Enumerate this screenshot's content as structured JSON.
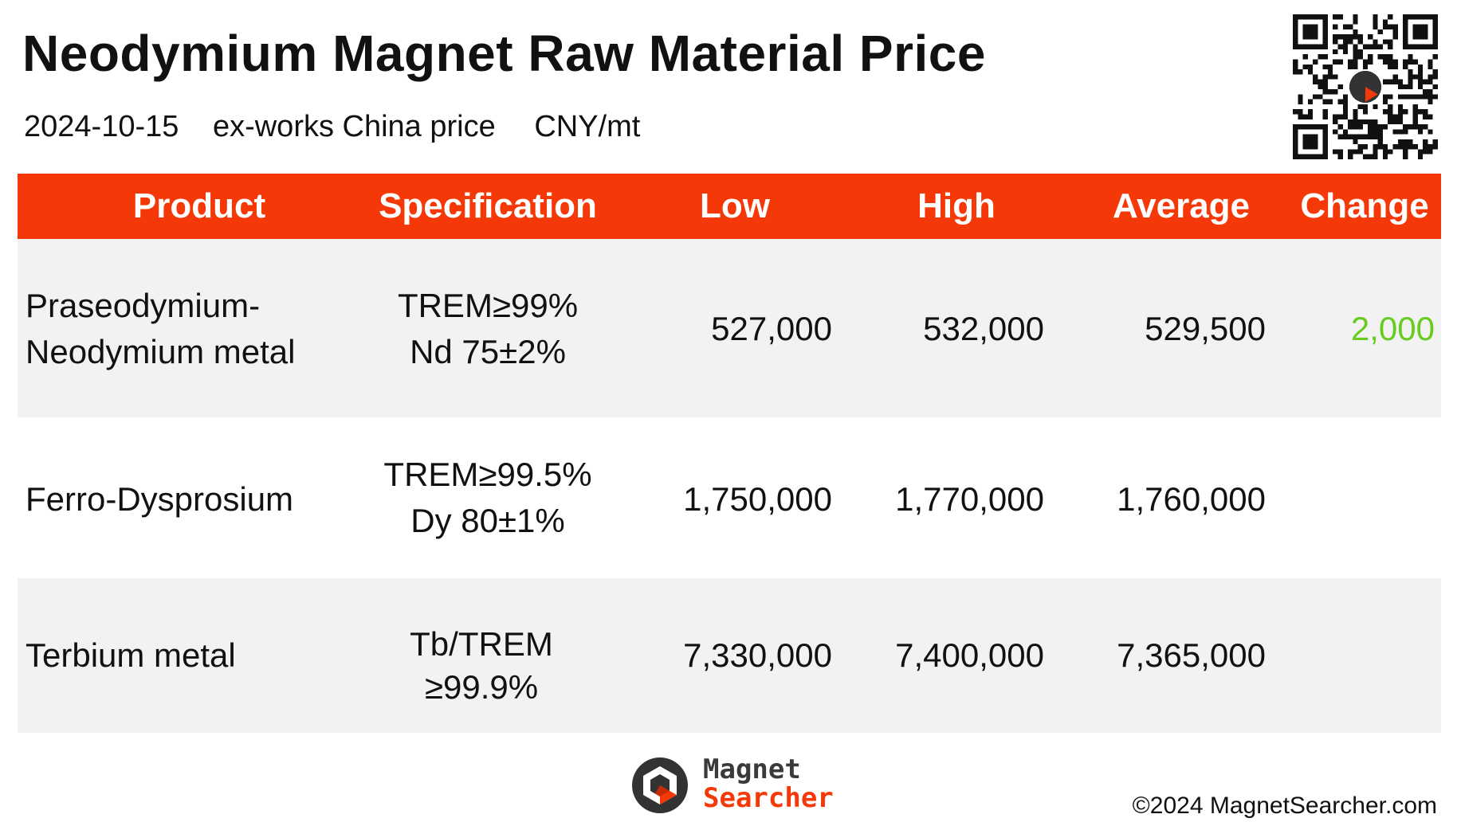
{
  "header": {
    "title": "Neodymium Magnet Raw Material Price",
    "date": "2024-10-15",
    "basis": "ex-works China price",
    "unit": "CNY/mt"
  },
  "table": {
    "columns": [
      "Product",
      "Specification",
      "Low",
      "High",
      "Average",
      "Change"
    ],
    "rows": [
      {
        "product": [
          "Praseodymium-",
          "Neodymium metal"
        ],
        "spec": [
          "TREM≥99%",
          "Nd 75±2%"
        ],
        "low": "527,000",
        "high": "532,000",
        "average": "529,500",
        "change": "2,000"
      },
      {
        "product": [
          "Ferro-Dysprosium"
        ],
        "spec": [
          "TREM≥99.5%",
          "Dy 80±1%"
        ],
        "low": "1,750,000",
        "high": "1,770,000",
        "average": "1,760,000",
        "change": ""
      },
      {
        "product": [
          "Terbium metal"
        ],
        "spec": [
          "Tb/TREM",
          "≥99.9%"
        ],
        "low": "7,330,000",
        "high": "7,400,000",
        "average": "7,365,000",
        "change": ""
      }
    ]
  },
  "colors": {
    "header_band": "#f53808",
    "change_up": "#66cc1f",
    "row_shade": "#f2f2f2"
  },
  "brand": {
    "logo_line1": "Magnet",
    "logo_line2": "Searcher",
    "copyright": "©2024 MagnetSearcher.com"
  },
  "icons": {
    "qr": "qr-code-icon",
    "logo": "magnet-searcher-logo-icon"
  }
}
